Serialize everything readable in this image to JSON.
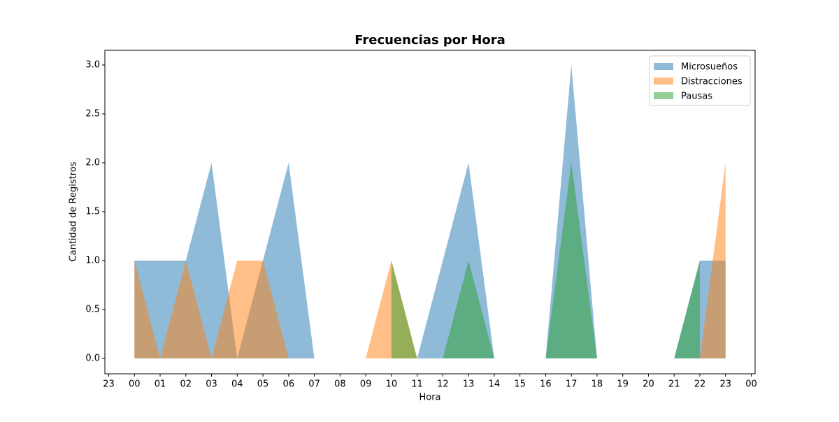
{
  "chart_data": {
    "type": "area",
    "title": "Frecuencias por Hora",
    "x_label": "Hora",
    "y_label": "Cantidad de Registros",
    "x": [
      0,
      1,
      2,
      3,
      4,
      5,
      6,
      7,
      8,
      9,
      10,
      11,
      12,
      13,
      14,
      15,
      16,
      17,
      18,
      19,
      20,
      21,
      22,
      23
    ],
    "series": [
      {
        "name": "Microsueños",
        "color": "#1f77b4",
        "values": [
          1,
          1,
          1,
          2,
          0,
          1,
          2,
          0,
          0,
          0,
          0,
          0,
          1,
          2,
          0,
          0,
          0,
          3,
          0,
          0,
          0,
          0,
          1,
          1
        ]
      },
      {
        "name": "Distracciones",
        "color": "#ff7f0e",
        "values": [
          1,
          0,
          1,
          0,
          1,
          1,
          0,
          0,
          0,
          0,
          1,
          0,
          0,
          0,
          0,
          0,
          0,
          0,
          0,
          0,
          0,
          0,
          0,
          2
        ]
      },
      {
        "name": "Pausas",
        "color": "#2ca02c",
        "values": [
          null,
          null,
          null,
          null,
          null,
          null,
          null,
          null,
          null,
          null,
          1,
          0,
          0,
          1,
          0,
          0,
          0,
          2,
          0,
          0,
          0,
          0,
          1,
          null
        ]
      }
    ],
    "opacity": 0.5,
    "xlim": [
      -1.15,
      24.15
    ],
    "xticks": [
      {
        "value": -1,
        "label": "23"
      },
      {
        "value": 0,
        "label": "00"
      },
      {
        "value": 1,
        "label": "01"
      },
      {
        "value": 2,
        "label": "02"
      },
      {
        "value": 3,
        "label": "03"
      },
      {
        "value": 4,
        "label": "04"
      },
      {
        "value": 5,
        "label": "05"
      },
      {
        "value": 6,
        "label": "06"
      },
      {
        "value": 7,
        "label": "07"
      },
      {
        "value": 8,
        "label": "08"
      },
      {
        "value": 9,
        "label": "09"
      },
      10,
      11,
      12,
      13,
      14,
      15,
      16,
      17,
      18,
      19,
      20,
      21,
      22,
      23,
      {
        "value": 24,
        "label": "00"
      }
    ],
    "ylim": [
      -0.157,
      3.15
    ],
    "yticks": [
      {
        "value": 0,
        "label": "0.0"
      },
      0.5,
      {
        "value": 1,
        "label": "1.0"
      },
      1.5,
      {
        "value": 2,
        "label": "2.0"
      },
      2.5,
      {
        "value": 3,
        "label": "3.0"
      }
    ],
    "grid": false,
    "legend": "upper right"
  }
}
